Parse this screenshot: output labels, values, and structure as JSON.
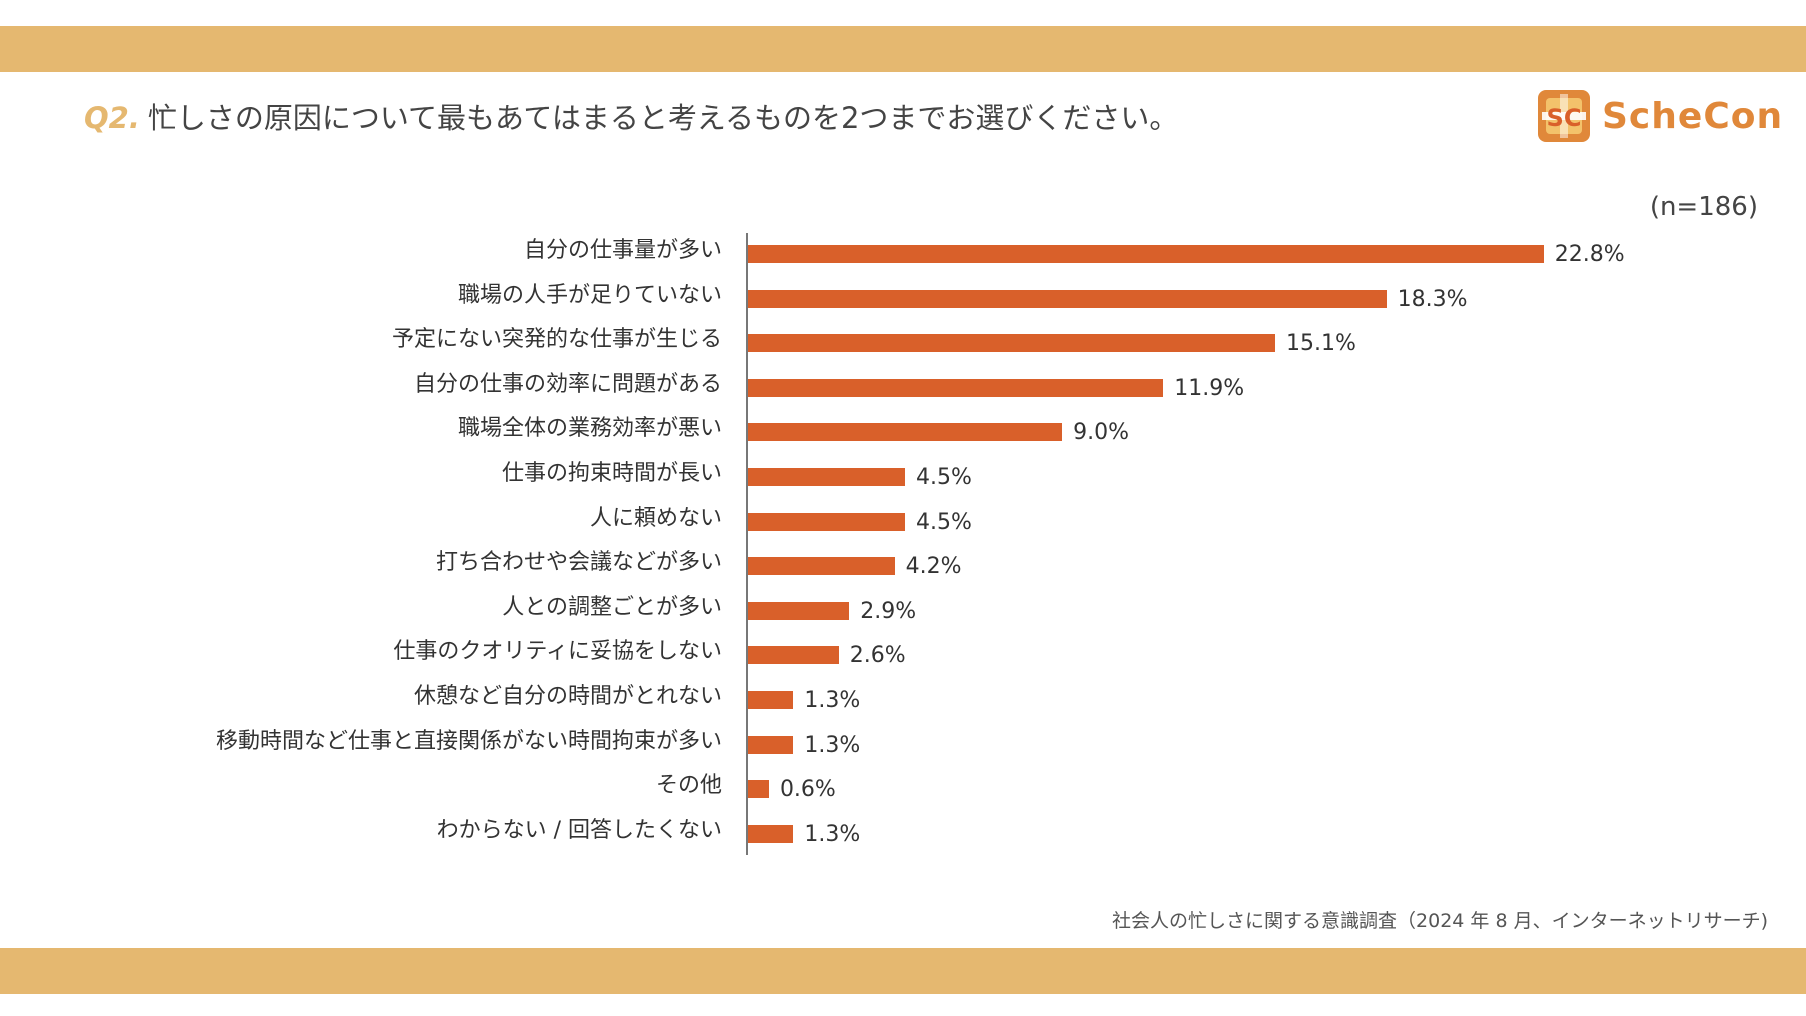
{
  "header": {
    "question_number": "Q2.",
    "question_text": "忙しさの原因について最もあてはまると考えるものを2つまでお選びください。"
  },
  "logo": {
    "mark_text": "SC",
    "brand": "ScheCon"
  },
  "sample_size": "(n=186)",
  "source": "社会人の忙しさに関する意識調査（2024 年 8 月、インターネットリサーチ)",
  "colors": {
    "band": "#e5b870",
    "bar": "#d9602a",
    "accent": "#e0883a"
  },
  "chart_data": {
    "type": "bar",
    "orientation": "horizontal",
    "categories": [
      "自分の仕事量が多い",
      "職場の人手が足りていない",
      "予定にない突発的な仕事が生じる",
      "自分の仕事の効率に問題がある",
      "職場全体の業務効率が悪い",
      "仕事の拘束時間が長い",
      "人に頼めない",
      "打ち合わせや会議などが多い",
      "人との調整ごとが多い",
      "仕事のクオリティに妥協をしない",
      "休憩など自分の時間がとれない",
      "移動時間など仕事と直接関係がない時間拘束が多い",
      "その他",
      "わからない / 回答したくない"
    ],
    "values": [
      22.8,
      18.3,
      15.1,
      11.9,
      9.0,
      4.5,
      4.5,
      4.2,
      2.9,
      2.6,
      1.3,
      1.3,
      0.6,
      1.3
    ],
    "value_labels": [
      "22.8%",
      "18.3%",
      "15.1%",
      "11.9%",
      "9.0%",
      "4.5%",
      "4.5%",
      "4.2%",
      "2.9%",
      "2.6%",
      "1.3%",
      "1.3%",
      "0.6%",
      "1.3%"
    ],
    "xlim": [
      0,
      30
    ],
    "grid": false,
    "legend": "none"
  }
}
